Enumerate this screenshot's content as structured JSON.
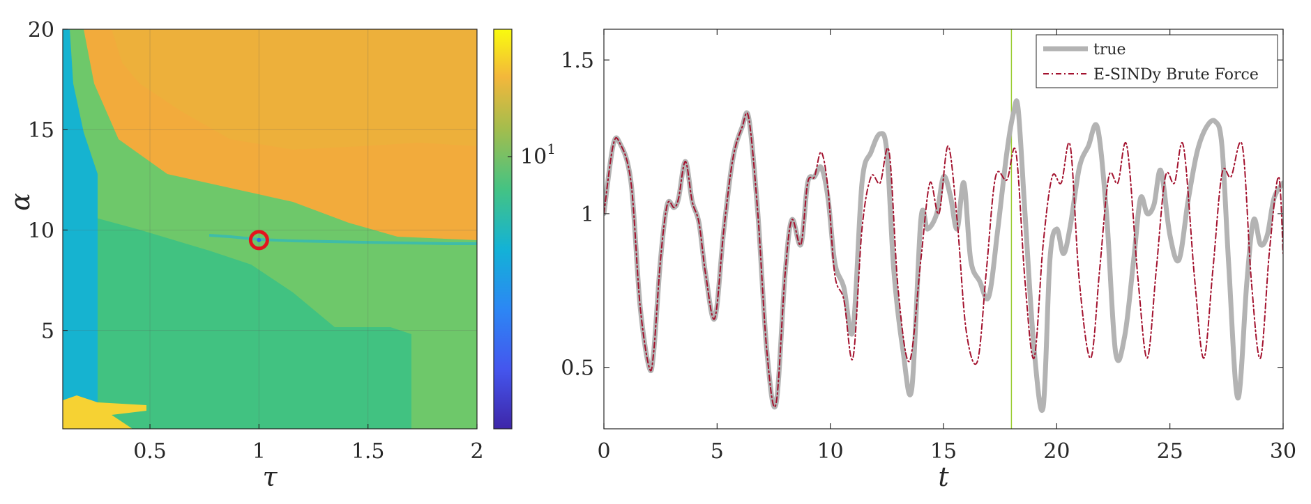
{
  "chart_data": [
    {
      "type": "heatmap",
      "xlabel": "τ",
      "ylabel": "α",
      "xlim": [
        0.1,
        2
      ],
      "ylim": [
        0.1,
        20
      ],
      "xticks": [
        0.5,
        1,
        1.5,
        2
      ],
      "yticks": [
        5,
        10,
        15,
        20
      ],
      "xtick_labels": [
        "0.5",
        "1",
        "1.5",
        "2"
      ],
      "ytick_labels": [
        "5",
        "10",
        "15",
        "20"
      ],
      "colorbar": {
        "scale": "log",
        "tick_labels": [
          "10^1"
        ],
        "tick_base": "10",
        "tick_exp": "1",
        "colormap": "parula"
      },
      "grid": true,
      "highlight": {
        "tau": 1.0,
        "alpha": 9.5,
        "color": "#e3141e"
      },
      "regions": [
        {
          "name": "background",
          "level": "high",
          "color": "#f2ab3c"
        },
        {
          "name": "upper-band",
          "level": "high",
          "color": "#e9b43a"
        },
        {
          "name": "middle-band",
          "level": "mid",
          "color": "#6ec86a"
        },
        {
          "name": "lower-band",
          "level": "mid-low",
          "color": "#41c281"
        },
        {
          "name": "left-strip",
          "level": "low",
          "color": "#16b3d0"
        },
        {
          "name": "bottom-left-spot",
          "level": "max",
          "color": "#f6d233"
        }
      ]
    },
    {
      "type": "line",
      "xlabel": "t",
      "ylabel": "",
      "xlim": [
        0,
        30
      ],
      "ylim": [
        0.3,
        1.6
      ],
      "xticks": [
        0,
        5,
        10,
        15,
        20,
        25,
        30
      ],
      "yticks": [
        0.5,
        1,
        1.5
      ],
      "xtick_labels": [
        "0",
        "5",
        "10",
        "15",
        "20",
        "25",
        "30"
      ],
      "ytick_labels": [
        "0.5",
        "1",
        "1.5"
      ],
      "vline": {
        "x": 18,
        "color": "#9acd32"
      },
      "legend": {
        "position": "top-right"
      },
      "series": [
        {
          "name": "true",
          "color": "#b3b3b3",
          "style": "solid",
          "x": [
            0,
            0.4,
            0.7,
            1.2,
            1.6,
            2.0,
            2.2,
            2.5,
            2.8,
            3.1,
            3.3,
            3.6,
            3.9,
            4.2,
            4.5,
            4.9,
            5.3,
            5.7,
            6.1,
            6.4,
            6.8,
            7.2,
            7.6,
            8.0,
            8.3,
            8.7,
            9.0,
            9.3,
            9.6,
            9.9,
            10.2,
            10.6,
            11.0,
            11.4,
            11.8,
            12.2,
            12.5,
            12.8,
            13.2,
            13.6,
            14.0,
            14.3,
            14.7,
            15.0,
            15.3,
            15.6,
            15.9,
            16.2,
            16.6,
            17.0,
            17.4,
            17.8,
            18.1,
            18.3,
            18.6,
            19.0,
            19.4,
            19.7,
            20.0,
            20.3,
            20.6,
            21.0,
            21.4,
            21.8,
            22.2,
            22.6,
            23.0,
            23.4,
            23.7,
            24.0,
            24.3,
            24.6,
            25.0,
            25.4,
            25.8,
            26.2,
            26.6,
            27.0,
            27.3,
            27.6,
            28.0,
            28.4,
            28.7,
            29.0,
            29.3,
            29.6,
            30.0
          ],
          "y": [
            1.0,
            1.22,
            1.23,
            1.1,
            0.7,
            0.5,
            0.55,
            0.85,
            1.03,
            1.02,
            1.05,
            1.17,
            1.04,
            0.97,
            0.8,
            0.66,
            0.95,
            1.18,
            1.28,
            1.31,
            1.0,
            0.55,
            0.38,
            0.8,
            0.98,
            0.9,
            1.1,
            1.12,
            1.15,
            1.05,
            0.84,
            0.76,
            0.62,
            1.1,
            1.2,
            1.26,
            1.2,
            0.82,
            0.56,
            0.43,
            0.98,
            0.95,
            1.0,
            1.12,
            1.06,
            0.95,
            1.1,
            0.85,
            0.78,
            0.73,
            0.95,
            1.2,
            1.33,
            1.34,
            1.0,
            0.56,
            0.37,
            0.85,
            0.95,
            0.87,
            0.96,
            1.15,
            1.22,
            1.28,
            1.0,
            0.55,
            0.6,
            0.85,
            1.05,
            1.0,
            1.03,
            1.14,
            0.93,
            0.85,
            1.04,
            1.2,
            1.28,
            1.3,
            1.22,
            0.83,
            0.4,
            0.78,
            0.98,
            0.9,
            0.93,
            1.05,
            1.1
          ]
        },
        {
          "name": "E-SINDy Brute Force",
          "color": "#a3122e",
          "style": "dashdot",
          "x": [
            0,
            0.4,
            0.7,
            1.2,
            1.6,
            2.0,
            2.2,
            2.5,
            2.8,
            3.1,
            3.3,
            3.6,
            3.9,
            4.2,
            4.5,
            4.9,
            5.3,
            5.7,
            6.1,
            6.4,
            6.8,
            7.2,
            7.6,
            8.0,
            8.3,
            8.7,
            9.0,
            9.3,
            9.6,
            9.9,
            10.2,
            10.6,
            11.0,
            11.4,
            11.8,
            12.2,
            12.6,
            13.0,
            13.5,
            14.0,
            14.4,
            14.8,
            15.2,
            15.6,
            16.0,
            16.5,
            16.9,
            17.3,
            17.8,
            18.2,
            18.6,
            19.0,
            19.4,
            19.8,
            20.2,
            20.6,
            21.0,
            21.5,
            21.9,
            22.3,
            22.7,
            23.1,
            23.6,
            24.0,
            24.4,
            24.8,
            25.2,
            25.6,
            26.1,
            26.5,
            26.9,
            27.3,
            27.7,
            28.2,
            28.6,
            29.0,
            29.4,
            29.8,
            30.0
          ],
          "y": [
            1.0,
            1.22,
            1.23,
            1.1,
            0.7,
            0.5,
            0.55,
            0.85,
            1.03,
            1.02,
            1.05,
            1.17,
            1.04,
            0.97,
            0.8,
            0.66,
            0.95,
            1.18,
            1.28,
            1.31,
            1.0,
            0.55,
            0.38,
            0.8,
            0.98,
            0.9,
            1.1,
            1.12,
            1.2,
            1.08,
            0.8,
            0.72,
            0.53,
            0.95,
            1.12,
            1.1,
            1.2,
            0.75,
            0.52,
            0.85,
            1.1,
            1.0,
            1.22,
            0.98,
            0.62,
            0.52,
            0.82,
            1.12,
            1.11,
            1.2,
            0.78,
            0.53,
            0.9,
            1.12,
            1.1,
            1.22,
            0.78,
            0.53,
            0.82,
            1.12,
            1.1,
            1.22,
            0.78,
            0.53,
            0.82,
            1.12,
            1.1,
            1.22,
            0.78,
            0.53,
            0.82,
            1.13,
            1.12,
            1.22,
            0.78,
            0.53,
            0.88,
            1.12,
            0.87
          ]
        }
      ]
    }
  ]
}
